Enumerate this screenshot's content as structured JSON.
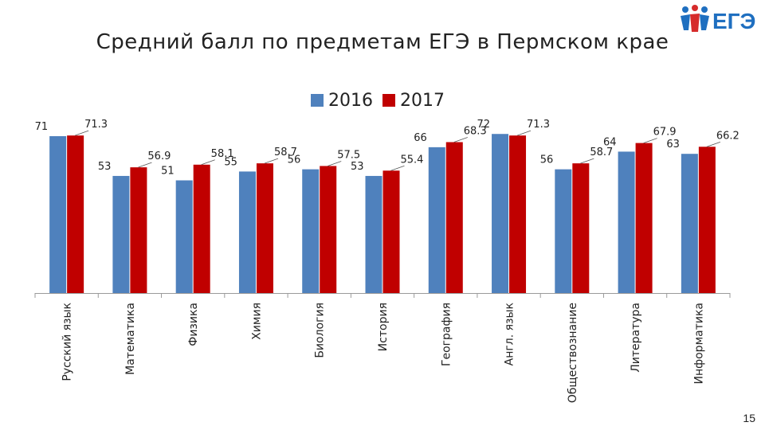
{
  "slide": {
    "title": "Средний балл по предметам ЕГЭ в Пермском крае",
    "page_number": "15",
    "logo_text": "ЕГЭ"
  },
  "colors": {
    "s2016": "#4F81BD",
    "s2017": "#C00000"
  },
  "chart_data": {
    "type": "bar",
    "title": "Средний балл по предметам ЕГЭ в Пермском крае",
    "categories": [
      "Русский язык",
      "Математика",
      "Физика",
      "Химия",
      "Биология",
      "История",
      "География",
      "Англ. язык",
      "Обществознание",
      "Литература",
      "Информатика"
    ],
    "series": [
      {
        "name": "2016",
        "values": [
          71,
          53,
          51,
          55,
          56,
          53,
          66,
          72,
          56,
          64,
          63
        ]
      },
      {
        "name": "2017",
        "values": [
          71.3,
          56.9,
          58.1,
          58.7,
          57.5,
          55.4,
          68.3,
          71.3,
          58.7,
          67.9,
          66.2
        ]
      }
    ],
    "labels": {
      "2016": [
        "71",
        "53",
        "51",
        "55",
        "56",
        "53",
        "66",
        "72",
        "56",
        "64",
        "63"
      ],
      "2017": [
        "71.3",
        "56.9",
        "58.1",
        "58.7",
        "57.5",
        "55.4",
        "68.3",
        "71.3",
        "58.7",
        "67.9",
        "66.2"
      ]
    },
    "ylim": [
      0,
      75
    ],
    "legend": "top-center",
    "grid": false
  }
}
